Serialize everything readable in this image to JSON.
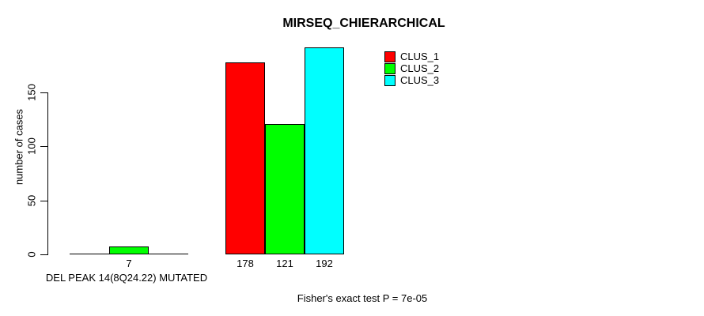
{
  "chart_data": {
    "type": "bar",
    "title": "MIRSEQ_CHIERARCHICAL",
    "ylabel": "number of cases",
    "xlabel": "DEL PEAK 14(8Q24.22) MUTATED",
    "annotation": "Fisher's exact test P = 7e-05",
    "ylim": [
      0,
      150
    ],
    "yticks": [
      0,
      50,
      100,
      150
    ],
    "categories": [
      "DEL PEAK 14(8Q24.22) MUTATED",
      ""
    ],
    "series": [
      {
        "name": "CLUS_1",
        "color": "#ff0000",
        "values": [
          0,
          178
        ]
      },
      {
        "name": "CLUS_2",
        "color": "#00ff00",
        "values": [
          7,
          121
        ]
      },
      {
        "name": "CLUS_3",
        "color": "#00ffff",
        "values": [
          0,
          192
        ]
      }
    ],
    "value_labels": [
      [
        "",
        "178"
      ],
      [
        "7",
        "121"
      ],
      [
        "",
        "192"
      ]
    ],
    "legend": {
      "position": "top-right",
      "entries": [
        {
          "label": "CLUS_1",
          "color": "#ff0000"
        },
        {
          "label": "CLUS_2",
          "color": "#00ff00"
        },
        {
          "label": "CLUS_3",
          "color": "#00ffff"
        }
      ]
    },
    "grid": false,
    "background": "#ffffff",
    "axis_color": "#000000"
  }
}
